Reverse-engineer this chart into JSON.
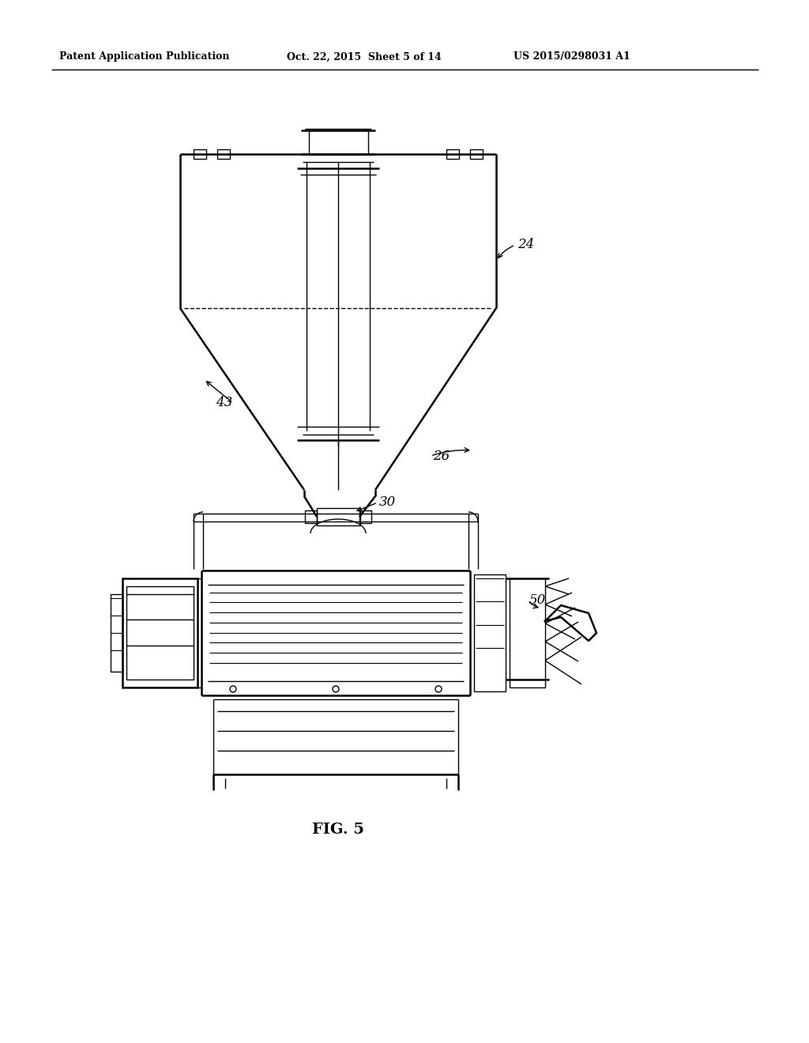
{
  "bg_color": "#ffffff",
  "line_color": "#000000",
  "header_left": "Patent Application Publication",
  "header_mid": "Oct. 22, 2015  Sheet 5 of 14",
  "header_right": "US 2015/0298031 A1",
  "fig_label": "FIG. 5"
}
